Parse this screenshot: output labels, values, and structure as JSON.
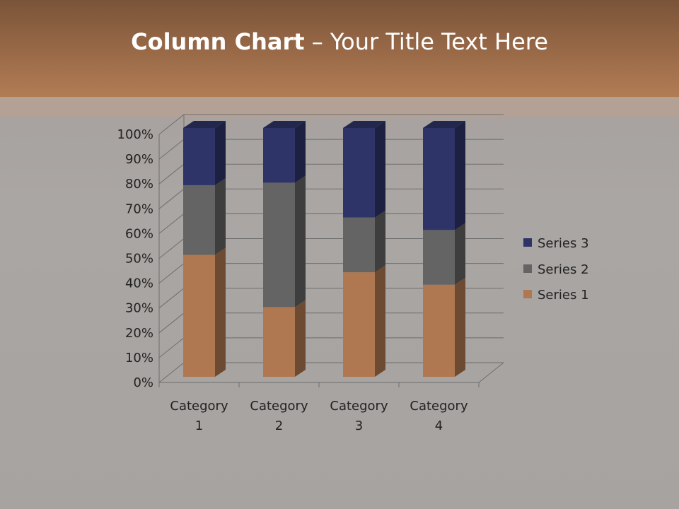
{
  "slide": {
    "title_bold": "Column Chart",
    "title_rest": " – Your Title Text Here"
  },
  "chart_data": {
    "type": "bar",
    "subtype": "3d-100%-stacked-column",
    "categories": [
      "Category 1",
      "Category 2",
      "Category 3",
      "Category 4"
    ],
    "category_lines": [
      [
        "Category",
        "1"
      ],
      [
        "Category",
        "2"
      ],
      [
        "Category",
        "3"
      ],
      [
        "Category",
        "4"
      ]
    ],
    "series": [
      {
        "name": "Series 1",
        "values": [
          49,
          28,
          42,
          37
        ],
        "color": "#b07850"
      },
      {
        "name": "Series 2",
        "values": [
          28,
          50,
          22,
          22
        ],
        "color": "#646464"
      },
      {
        "name": "Series 3",
        "values": [
          23,
          22,
          36,
          41
        ],
        "color": "#2f3468"
      }
    ],
    "yticks": [
      "0%",
      "10%",
      "20%",
      "30%",
      "40%",
      "50%",
      "60%",
      "70%",
      "80%",
      "90%",
      "100%"
    ],
    "ylim": [
      0,
      100
    ],
    "grid": true,
    "legend_position": "right"
  }
}
